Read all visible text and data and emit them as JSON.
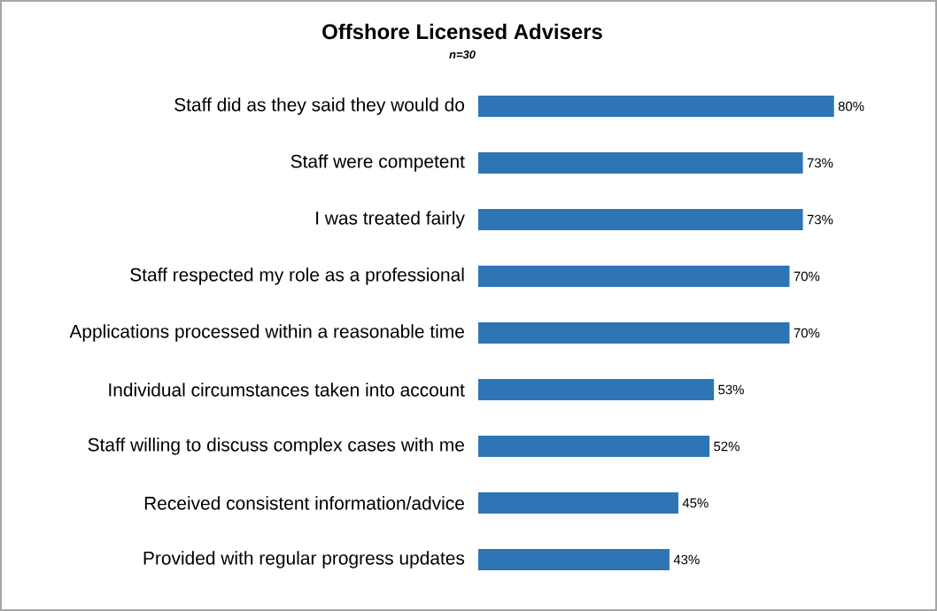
{
  "chart_data": {
    "type": "bar",
    "orientation": "horizontal",
    "title": "Offshore Licensed Advisers",
    "subtitle": "n=30",
    "categories": [
      "Staff did as they said they would do",
      "Staff were competent",
      "I was treated fairly",
      "Staff respected my role as a professional",
      "Applications processed within a reasonable time",
      "Individual circumstances taken into account",
      "Staff willing to discuss complex cases with me",
      "Received consistent information/advice",
      "Provided with regular progress updates"
    ],
    "values": [
      80,
      73,
      73,
      70,
      70,
      53,
      52,
      45,
      43
    ],
    "value_labels": [
      "80%",
      "73%",
      "73%",
      "70%",
      "70%",
      "53%",
      "52%",
      "45%",
      "43%"
    ],
    "color": "#2e75b6"
  }
}
